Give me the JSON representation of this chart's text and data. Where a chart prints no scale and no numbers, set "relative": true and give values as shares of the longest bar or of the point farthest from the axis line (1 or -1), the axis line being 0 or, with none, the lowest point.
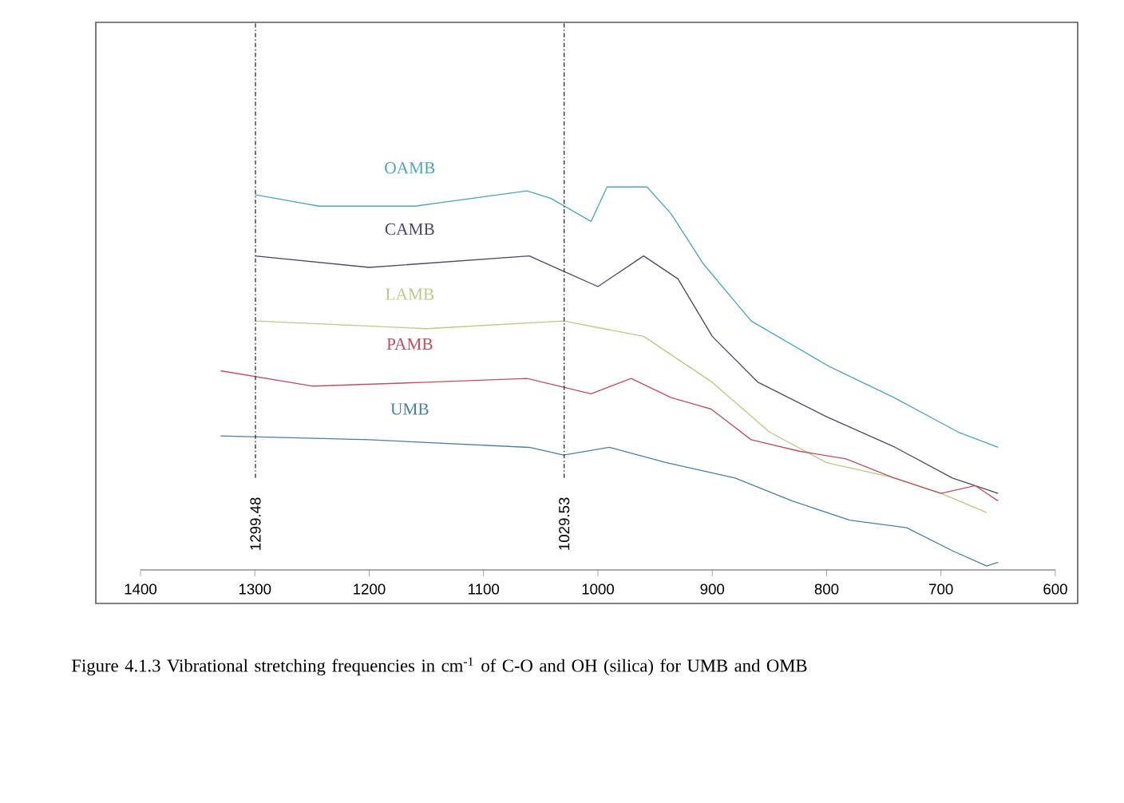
{
  "chart_data": {
    "type": "line",
    "relative": true,
    "xlim": [
      1400,
      600
    ],
    "xticks": [
      1400,
      1300,
      1200,
      1100,
      1000,
      900,
      800,
      700,
      600
    ],
    "grid": false,
    "legend": false,
    "marker": "none",
    "line_style": "solid",
    "series": [
      {
        "name": "OAMB",
        "color": "#4aa8b8",
        "x": [
          1300,
          1244,
          1160,
          1062,
          1041,
          1006,
          992,
          957,
          936,
          908,
          866,
          797,
          741,
          685,
          650
        ],
        "values": [
          0.98,
          0.95,
          0.95,
          0.99,
          0.97,
          0.91,
          1.0,
          1.0,
          0.93,
          0.8,
          0.65,
          0.53,
          0.45,
          0.36,
          0.32
        ]
      },
      {
        "name": "CAMB",
        "color": "#4a4a6a",
        "x": [
          1300,
          1200,
          1060,
          1030,
          1000,
          960,
          930,
          900,
          860,
          800,
          740,
          690,
          650
        ],
        "values": [
          0.82,
          0.79,
          0.82,
          0.78,
          0.74,
          0.82,
          0.76,
          0.61,
          0.49,
          0.4,
          0.32,
          0.24,
          0.2
        ]
      },
      {
        "name": "LAMB",
        "color": "#b8cc80",
        "x": [
          1300,
          1150,
          1030,
          960,
          900,
          850,
          800,
          740,
          700,
          660
        ],
        "values": [
          0.65,
          0.63,
          0.65,
          0.61,
          0.49,
          0.36,
          0.28,
          0.24,
          0.2,
          0.15
        ]
      },
      {
        "name": "PAMB",
        "color": "#c05060",
        "x": [
          1330,
          1250,
          1150,
          1062,
          1006,
          971,
          936,
          901,
          866,
          824,
          783,
          741,
          700,
          670,
          650
        ],
        "values": [
          0.52,
          0.48,
          0.49,
          0.5,
          0.46,
          0.5,
          0.45,
          0.42,
          0.34,
          0.31,
          0.29,
          0.24,
          0.2,
          0.22,
          0.18
        ]
      },
      {
        "name": "UMB",
        "color": "#4a80a0",
        "x": [
          1330,
          1200,
          1060,
          1030,
          990,
          940,
          880,
          830,
          780,
          730,
          690,
          660,
          650
        ],
        "values": [
          0.35,
          0.34,
          0.32,
          0.3,
          0.32,
          0.28,
          0.24,
          0.18,
          0.13,
          0.11,
          0.05,
          0.01,
          0.02
        ]
      }
    ],
    "ref_lines": [
      {
        "axis": "x",
        "value": 1299.48,
        "label": "1299.48",
        "line_style": "dotted",
        "color": "#333333"
      },
      {
        "axis": "x",
        "value": 1029.53,
        "label": "1029.53",
        "line_style": "dotted",
        "color": "#333333"
      }
    ],
    "annotations": [
      "Figure 4.1.3 Vibrational stretching frequencies in cm$^{-1}$ of C-O and OH (silica) for UMB and OMB"
    ]
  }
}
